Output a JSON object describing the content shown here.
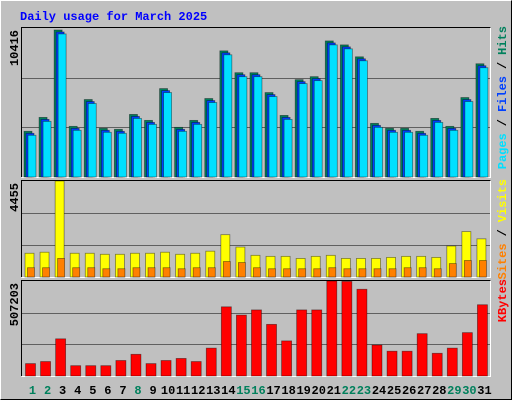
{
  "chart_data": [
    {
      "type": "bar",
      "title": "Daily usage for March 2025",
      "title_color": "#0000ff",
      "categories": [
        "1",
        "2",
        "3",
        "4",
        "5",
        "6",
        "7",
        "8",
        "9",
        "10",
        "11",
        "12",
        "13",
        "14",
        "15",
        "16",
        "17",
        "18",
        "19",
        "20",
        "21",
        "22",
        "23",
        "24",
        "25",
        "26",
        "27",
        "28",
        "29",
        "30",
        "31"
      ],
      "series": [
        {
          "name": "Hits",
          "color": "#00805c",
          "values": [
            3194,
            4167,
            10277,
            3541,
            5416,
            3403,
            3333,
            4375,
            3958,
            6180,
            3472,
            3958,
            5486,
            8819,
            7291,
            7291,
            5902,
            4305,
            6805,
            7014,
            9513,
            9236,
            8402,
            3750,
            3403,
            3403,
            3194,
            4097,
            3541,
            5555,
            7916
          ]
        },
        {
          "name": "Files",
          "color": "#0040ff",
          "values": [
            3054,
            4027,
            10137,
            3401,
            5276,
            3263,
            3193,
            4235,
            3818,
            6040,
            3332,
            3818,
            5346,
            8679,
            7151,
            7151,
            5762,
            4165,
            6665,
            6874,
            9373,
            9096,
            8262,
            3610,
            3263,
            3263,
            3054,
            3957,
            3401,
            5415,
            7776
          ]
        },
        {
          "name": "Pages",
          "color": "#00e0ff",
          "values": [
            2917,
            3889,
            10000,
            3264,
            5139,
            3125,
            3056,
            4097,
            3681,
            5903,
            3194,
            3681,
            5208,
            8542,
            7014,
            7014,
            5625,
            4028,
            6528,
            6736,
            9236,
            8958,
            8125,
            3472,
            3125,
            3125,
            2917,
            3819,
            3264,
            5278,
            7639
          ]
        }
      ],
      "legend_separator": "/",
      "ylim": [
        0,
        10416
      ],
      "yticks": [
        10416
      ],
      "grid_values": [
        3472,
        6944
      ]
    },
    {
      "type": "bar",
      "categories": [
        "1",
        "2",
        "3",
        "4",
        "5",
        "6",
        "7",
        "8",
        "9",
        "10",
        "11",
        "12",
        "13",
        "14",
        "15",
        "16",
        "17",
        "18",
        "19",
        "20",
        "21",
        "22",
        "23",
        "24",
        "25",
        "26",
        "27",
        "28",
        "29",
        "30",
        "31"
      ],
      "series": [
        {
          "name": "Visits",
          "color": "#ffff00",
          "values": [
            1102,
            1150,
            4455,
            1102,
            1102,
            1054,
            1054,
            1102,
            1102,
            1150,
            1054,
            1102,
            1198,
            1964,
            1389,
            1006,
            958,
            958,
            862,
            958,
            1006,
            862,
            862,
            862,
            910,
            958,
            958,
            910,
            1437,
            2108,
            1772
          ]
        },
        {
          "name": "Sites",
          "color": "#ff8000",
          "values": [
            431,
            431,
            862,
            431,
            431,
            383,
            383,
            431,
            431,
            431,
            383,
            431,
            431,
            719,
            671,
            431,
            383,
            383,
            383,
            383,
            431,
            383,
            383,
            383,
            383,
            431,
            431,
            383,
            623,
            766,
            766
          ]
        }
      ],
      "legend_separator": "/",
      "ylim": [
        0,
        4455
      ],
      "yticks": [
        4455
      ],
      "grid_values": [
        1485,
        2970
      ]
    },
    {
      "type": "bar",
      "categories": [
        "1",
        "2",
        "3",
        "4",
        "5",
        "6",
        "7",
        "8",
        "9",
        "10",
        "11",
        "12",
        "13",
        "14",
        "15",
        "16",
        "17",
        "18",
        "19",
        "20",
        "21",
        "22",
        "23",
        "24",
        "25",
        "26",
        "27",
        "28",
        "29",
        "30",
        "31"
      ],
      "category_colors": [
        "#00805c",
        "#00805c",
        "#000000",
        "#000000",
        "#000000",
        "#000000",
        "#000000",
        "#00805c",
        "#000000",
        "#000000",
        "#000000",
        "#000000",
        "#000000",
        "#000000",
        "#00805c",
        "#00805c",
        "#000000",
        "#000000",
        "#000000",
        "#000000",
        "#000000",
        "#00805c",
        "#00805c",
        "#000000",
        "#000000",
        "#000000",
        "#000000",
        "#000000",
        "#00805c",
        "#00805c",
        "#000000"
      ],
      "series": [
        {
          "name": "KBytes",
          "color": "#ff0000",
          "values": [
            66156,
            77182,
            198468,
            55130,
            55130,
            55130,
            82695,
            115773,
            66156,
            82695,
            93721,
            77182,
            148851,
            369371,
            325267,
            352832,
            275650,
            187442,
            352832,
            352832,
            507203,
            505000,
            463092,
            165390,
            132312,
            132312,
            226033,
            121286,
            148851,
            231546,
            380397
          ]
        }
      ],
      "ylim": [
        0,
        507203
      ],
      "yticks": [
        507203
      ],
      "grid_values": [
        169068,
        338135
      ]
    }
  ]
}
